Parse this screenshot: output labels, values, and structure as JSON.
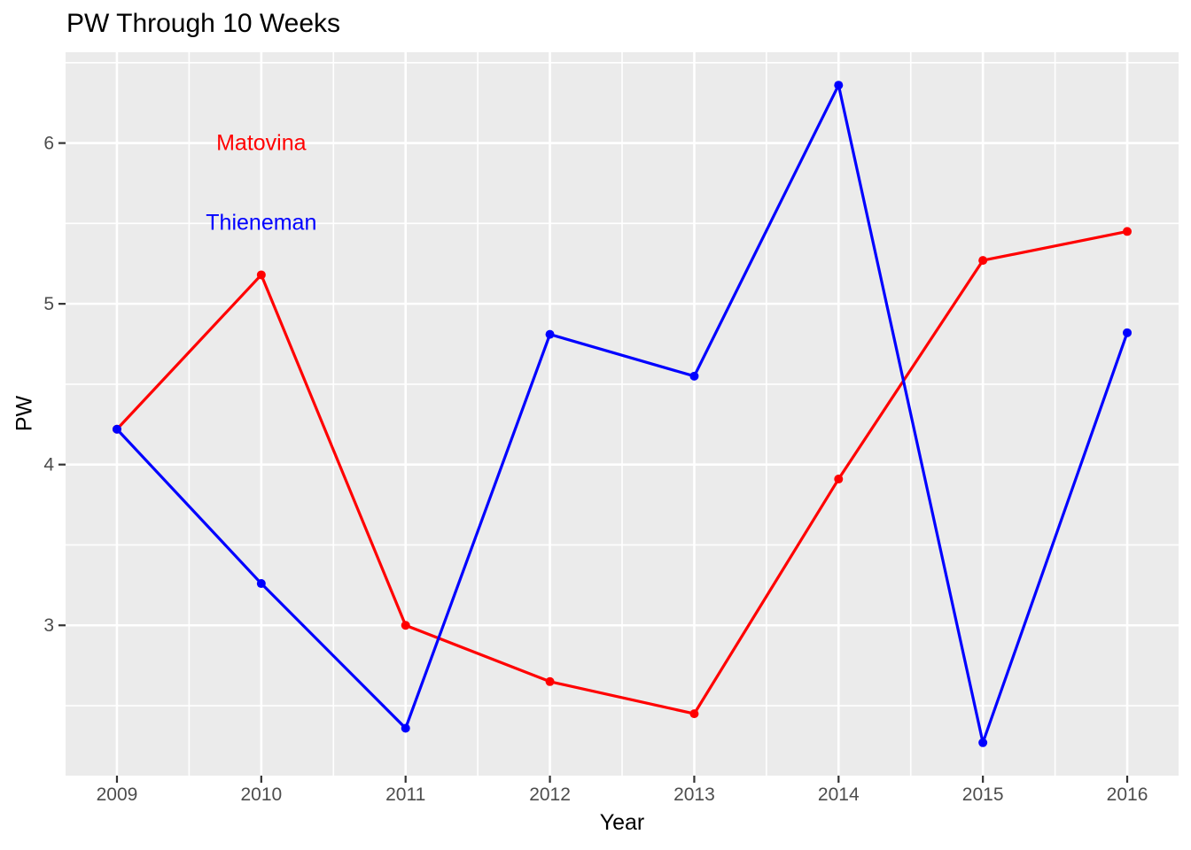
{
  "chart_data": {
    "type": "line",
    "title": "PW Through 10 Weeks",
    "xlabel": "Year",
    "ylabel": "PW",
    "x": [
      2009,
      2010,
      2011,
      2012,
      2013,
      2014,
      2015,
      2016
    ],
    "series": [
      {
        "name": "Matovina",
        "color": "#ff0000",
        "values": [
          4.22,
          5.18,
          3.0,
          2.65,
          2.45,
          3.91,
          5.27,
          5.45
        ]
      },
      {
        "name": "Thieneman",
        "color": "#0000ff",
        "values": [
          4.22,
          3.26,
          2.36,
          4.81,
          4.55,
          6.36,
          2.27,
          4.82
        ]
      }
    ],
    "annotations": [
      {
        "text": "Matovina",
        "color": "#ff0000",
        "x": 2010,
        "y": 6.0
      },
      {
        "text": "Thieneman",
        "color": "#0000ff",
        "x": 2010,
        "y": 5.5
      }
    ],
    "x_ticks": [
      "2009",
      "2010",
      "2011",
      "2012",
      "2013",
      "2014",
      "2015",
      "2016"
    ],
    "y_ticks": [
      3,
      4,
      5,
      6
    ],
    "y_minor": [
      2.5,
      3.5,
      4.5,
      5.5,
      6.5
    ],
    "xlim": [
      2008.644,
      2016.356
    ],
    "ylim": [
      2.065,
      6.565
    ],
    "grid": "on",
    "legend_position": "none",
    "colors": {
      "panel_bg": "#ebebeb",
      "grid": "#ffffff",
      "tick_mark": "#333333",
      "tick_label": "#4d4d4d",
      "title_text": "#000000"
    }
  }
}
